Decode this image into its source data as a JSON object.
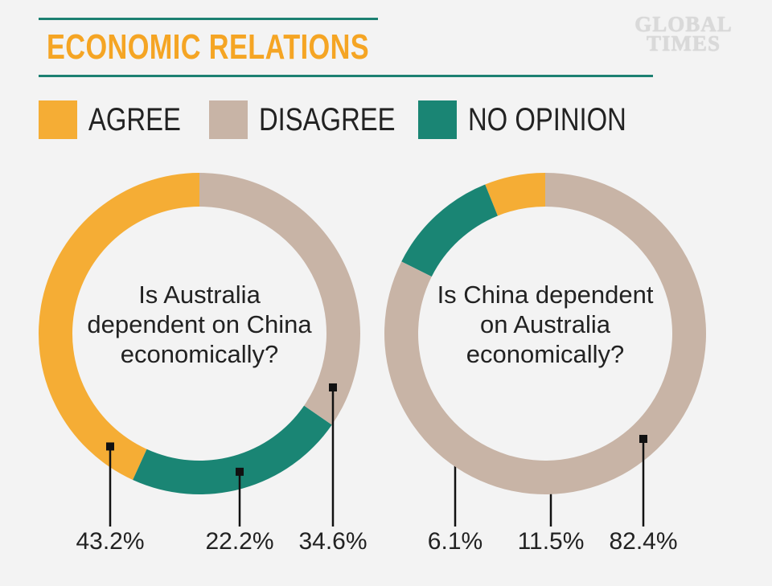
{
  "header": {
    "title": "ECONOMIC RELATIONS",
    "logo_line1": "GLOBAL",
    "logo_line2": "TIMES"
  },
  "legend": [
    {
      "label": "AGREE",
      "color": "#f5ad35"
    },
    {
      "label": "DISAGREE",
      "color": "#c8b4a6"
    },
    {
      "label": "NO OPINION",
      "color": "#1a8574"
    }
  ],
  "chart_data": [
    {
      "type": "pie",
      "question_lines": [
        "Is Australia",
        "dependent on China",
        "economically?"
      ],
      "categories": [
        "AGREE",
        "NO OPINION",
        "DISAGREE"
      ],
      "values": [
        43.2,
        22.2,
        34.6
      ],
      "labels": [
        "43.2%",
        "22.2%",
        "34.6%"
      ],
      "colors": [
        "#f5ad35",
        "#1a8574",
        "#c8b4a6"
      ]
    },
    {
      "type": "pie",
      "question_lines": [
        "Is China dependent",
        "on Australia",
        "economically?"
      ],
      "categories": [
        "AGREE",
        "NO OPINION",
        "DISAGREE"
      ],
      "values": [
        6.1,
        11.5,
        82.4
      ],
      "labels": [
        "6.1%",
        "11.5%",
        "82.4%"
      ],
      "colors": [
        "#f5ad35",
        "#1a8574",
        "#c8b4a6"
      ]
    }
  ]
}
